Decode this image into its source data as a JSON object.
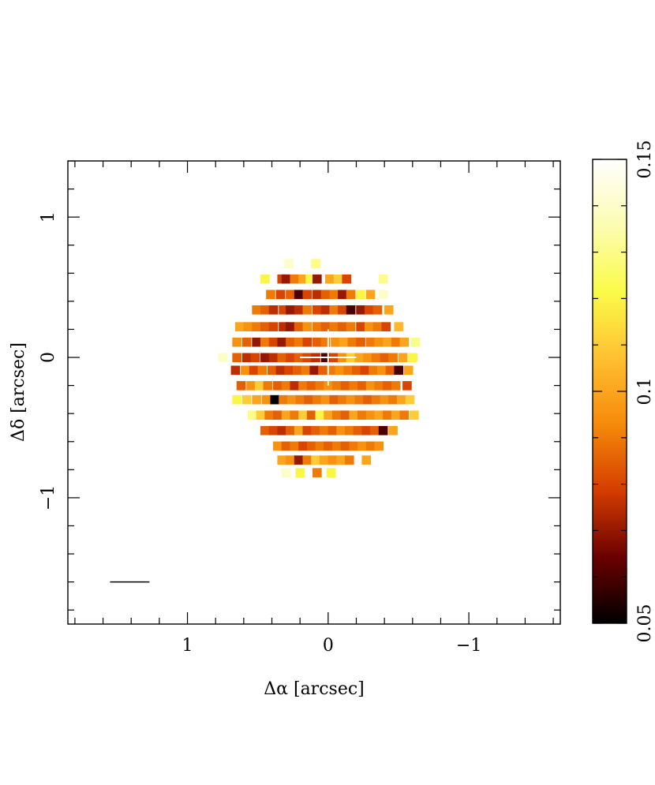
{
  "chart_data": {
    "type": "heatmap",
    "title": "",
    "xlabel": "Δα [arcsec]",
    "ylabel": "Δδ [arcsec]",
    "xlim": [
      1.85,
      -1.65
    ],
    "ylim": [
      -1.9,
      1.4
    ],
    "x_ticks": [
      {
        "value": 1,
        "label": "1"
      },
      {
        "value": 0,
        "label": "0"
      },
      {
        "value": -1,
        "label": "−1"
      }
    ],
    "y_ticks": [
      {
        "value": 1,
        "label": "1"
      },
      {
        "value": 0,
        "label": "0"
      },
      {
        "value": -1,
        "label": "−1"
      }
    ],
    "x_minor_step": 0.2,
    "y_minor_step": 0.2,
    "pixel_size_arcsec": [
      0.0625,
      0.0625
    ],
    "center_marker": {
      "type": "cross",
      "color": "#ffffff",
      "x": 0,
      "y": 0,
      "half_length_x": 0.2,
      "half_length_y": 0.2
    },
    "scale_bar": {
      "x_start": 1.55,
      "x_end": 1.27,
      "y": -1.6,
      "color": "#000000"
    },
    "colorbar": {
      "range": [
        0.05,
        0.15
      ],
      "ticks": [
        {
          "value": 0.05,
          "label": "0.05"
        },
        {
          "value": 0.1,
          "label": "0.1"
        },
        {
          "value": 0.15,
          "label": "0.15"
        }
      ],
      "minor_step": 0.01,
      "colormap": "afmhot",
      "colors": [
        "#000000",
        "#6b0000",
        "#d43d00",
        "#f58a0a",
        "#ffc030",
        "#fbfb49",
        "#fcfcb2",
        "#ffffff"
      ]
    },
    "grid": false,
    "legend": "none",
    "heatmap_rows": [
      {
        "y": 0.67,
        "cells": [
          [
            0.28,
            0.14
          ],
          [
            0.09,
            0.13
          ]
        ]
      },
      {
        "y": 0.56,
        "cells": [
          [
            0.45,
            0.12
          ],
          [
            0.33,
            0.08
          ],
          [
            0.3,
            0.07
          ],
          [
            0.24,
            0.09
          ],
          [
            0.18,
            0.1
          ],
          [
            0.13,
            0.12
          ],
          [
            0.08,
            0.07
          ],
          [
            -0.01,
            0.1
          ],
          [
            -0.07,
            0.11
          ],
          [
            -0.13,
            0.08
          ],
          [
            -0.39,
            0.13
          ]
        ]
      },
      {
        "y": 0.45,
        "cells": [
          [
            0.41,
            0.09
          ],
          [
            0.34,
            0.08
          ],
          [
            0.27,
            0.085
          ],
          [
            0.21,
            0.06
          ],
          [
            0.15,
            0.08
          ],
          [
            0.08,
            0.075
          ],
          [
            0.02,
            0.085
          ],
          [
            -0.04,
            0.09
          ],
          [
            -0.1,
            0.07
          ],
          [
            -0.16,
            0.09
          ],
          [
            -0.23,
            0.12
          ],
          [
            -0.3,
            0.1
          ],
          [
            -0.39,
            0.14
          ]
        ]
      },
      {
        "y": 0.34,
        "cells": [
          [
            0.51,
            0.09
          ],
          [
            0.45,
            0.085
          ],
          [
            0.39,
            0.075
          ],
          [
            0.32,
            0.08
          ],
          [
            0.27,
            0.07
          ],
          [
            0.21,
            0.075
          ],
          [
            0.15,
            0.09
          ],
          [
            0.08,
            0.08
          ],
          [
            0.02,
            0.075
          ],
          [
            -0.04,
            0.09
          ],
          [
            -0.1,
            0.08
          ],
          [
            -0.16,
            0.06
          ],
          [
            -0.23,
            0.07
          ],
          [
            -0.29,
            0.08
          ],
          [
            -0.35,
            0.085
          ],
          [
            -0.43,
            0.1
          ]
        ]
      },
      {
        "y": 0.22,
        "cells": [
          [
            0.63,
            0.1
          ],
          [
            0.57,
            0.095
          ],
          [
            0.51,
            0.09
          ],
          [
            0.45,
            0.085
          ],
          [
            0.39,
            0.08
          ],
          [
            0.32,
            0.075
          ],
          [
            0.27,
            0.07
          ],
          [
            0.21,
            0.085
          ],
          [
            0.15,
            0.095
          ],
          [
            0.08,
            0.09
          ],
          [
            0.02,
            0.085
          ],
          [
            -0.04,
            0.09
          ],
          [
            -0.1,
            0.085
          ],
          [
            -0.16,
            0.09
          ],
          [
            -0.23,
            0.08
          ],
          [
            -0.29,
            0.095
          ],
          [
            -0.35,
            0.09
          ],
          [
            -0.41,
            0.08
          ],
          [
            -0.5,
            0.105
          ]
        ]
      },
      {
        "y": 0.11,
        "cells": [
          [
            0.65,
            0.095
          ],
          [
            0.58,
            0.085
          ],
          [
            0.51,
            0.07
          ],
          [
            0.45,
            0.09
          ],
          [
            0.39,
            0.08
          ],
          [
            0.33,
            0.07
          ],
          [
            0.27,
            0.085
          ],
          [
            0.21,
            0.09
          ],
          [
            0.15,
            0.08
          ],
          [
            0.08,
            0.085
          ],
          [
            0.02,
            0.09
          ],
          [
            -0.05,
            0.095
          ],
          [
            -0.11,
            0.1
          ],
          [
            -0.17,
            0.09
          ],
          [
            -0.23,
            0.085
          ],
          [
            -0.3,
            0.09
          ],
          [
            -0.36,
            0.095
          ],
          [
            -0.42,
            0.1
          ],
          [
            -0.48,
            0.09
          ],
          [
            -0.54,
            0.1
          ],
          [
            -0.62,
            0.13
          ]
        ]
      },
      {
        "y": 0.0,
        "cells": [
          [
            0.75,
            0.14
          ],
          [
            0.65,
            0.085
          ],
          [
            0.58,
            0.075
          ],
          [
            0.52,
            0.08
          ],
          [
            0.45,
            0.07
          ],
          [
            0.39,
            0.075
          ],
          [
            0.33,
            0.085
          ],
          [
            0.27,
            0.08
          ],
          [
            0.21,
            0.085
          ],
          [
            0.15,
            0.08
          ],
          [
            0.09,
            0.075
          ],
          [
            0.02,
            0.06
          ],
          [
            -0.04,
            0.08
          ],
          [
            -0.1,
            0.095
          ],
          [
            -0.16,
            0.11
          ],
          [
            -0.22,
            0.1
          ],
          [
            -0.28,
            0.095
          ],
          [
            -0.34,
            0.09
          ],
          [
            -0.4,
            0.085
          ],
          [
            -0.46,
            0.09
          ],
          [
            -0.53,
            0.1
          ],
          [
            -0.6,
            0.12
          ]
        ]
      },
      {
        "y": -0.09,
        "cells": [
          [
            0.66,
            0.075
          ],
          [
            0.59,
            0.095
          ],
          [
            0.53,
            0.08
          ],
          [
            0.47,
            0.09
          ],
          [
            0.4,
            0.085
          ],
          [
            0.34,
            0.075
          ],
          [
            0.28,
            0.08
          ],
          [
            0.22,
            0.085
          ],
          [
            0.16,
            0.09
          ],
          [
            0.1,
            0.07
          ],
          [
            0.04,
            0.085
          ],
          [
            -0.02,
            0.09
          ],
          [
            -0.08,
            0.095
          ],
          [
            -0.14,
            0.09
          ],
          [
            -0.2,
            0.085
          ],
          [
            -0.26,
            0.08
          ],
          [
            -0.32,
            0.09
          ],
          [
            -0.38,
            0.095
          ],
          [
            -0.44,
            0.085
          ],
          [
            -0.5,
            0.06
          ],
          [
            -0.57,
            0.1
          ]
        ]
      },
      {
        "y": -0.2,
        "cells": [
          [
            0.62,
            0.085
          ],
          [
            0.55,
            0.095
          ],
          [
            0.49,
            0.11
          ],
          [
            0.43,
            0.09
          ],
          [
            0.36,
            0.085
          ],
          [
            0.3,
            0.09
          ],
          [
            0.24,
            0.075
          ],
          [
            0.18,
            0.09
          ],
          [
            0.12,
            0.085
          ],
          [
            0.06,
            0.09
          ],
          [
            0.0,
            0.095
          ],
          [
            -0.06,
            0.09
          ],
          [
            -0.12,
            0.085
          ],
          [
            -0.18,
            0.09
          ],
          [
            -0.24,
            0.085
          ],
          [
            -0.3,
            0.095
          ],
          [
            -0.36,
            0.09
          ],
          [
            -0.42,
            0.085
          ],
          [
            -0.48,
            0.09
          ],
          [
            -0.56,
            0.08
          ]
        ]
      },
      {
        "y": -0.3,
        "cells": [
          [
            0.65,
            0.12
          ],
          [
            0.58,
            0.11
          ],
          [
            0.51,
            0.1
          ],
          [
            0.44,
            0.095
          ],
          [
            0.38,
            0.05
          ],
          [
            0.32,
            0.09
          ],
          [
            0.26,
            0.095
          ],
          [
            0.2,
            0.09
          ],
          [
            0.14,
            0.085
          ],
          [
            0.08,
            0.09
          ],
          [
            0.02,
            0.095
          ],
          [
            -0.04,
            0.085
          ],
          [
            -0.1,
            0.09
          ],
          [
            -0.16,
            0.095
          ],
          [
            -0.22,
            0.09
          ],
          [
            -0.28,
            0.085
          ],
          [
            -0.34,
            0.09
          ],
          [
            -0.4,
            0.095
          ],
          [
            -0.46,
            0.09
          ],
          [
            -0.52,
            0.1
          ],
          [
            -0.58,
            0.11
          ]
        ]
      },
      {
        "y": -0.41,
        "cells": [
          [
            0.54,
            0.13
          ],
          [
            0.48,
            0.11
          ],
          [
            0.42,
            0.09
          ],
          [
            0.36,
            0.085
          ],
          [
            0.3,
            0.1
          ],
          [
            0.24,
            0.09
          ],
          [
            0.18,
            0.11
          ],
          [
            0.12,
            0.085
          ],
          [
            0.06,
            0.12
          ],
          [
            0.0,
            0.1
          ],
          [
            -0.06,
            0.09
          ],
          [
            -0.12,
            0.085
          ],
          [
            -0.18,
            0.1
          ],
          [
            -0.24,
            0.09
          ],
          [
            -0.3,
            0.095
          ],
          [
            -0.36,
            0.1
          ],
          [
            -0.42,
            0.09
          ],
          [
            -0.48,
            0.1
          ],
          [
            -0.54,
            0.09
          ],
          [
            -0.61,
            0.11
          ]
        ]
      },
      {
        "y": -0.52,
        "cells": [
          [
            0.45,
            0.085
          ],
          [
            0.39,
            0.08
          ],
          [
            0.33,
            0.075
          ],
          [
            0.27,
            0.085
          ],
          [
            0.21,
            0.1
          ],
          [
            0.15,
            0.08
          ],
          [
            0.09,
            0.085
          ],
          [
            0.03,
            0.09
          ],
          [
            -0.03,
            0.085
          ],
          [
            -0.09,
            0.095
          ],
          [
            -0.15,
            0.09
          ],
          [
            -0.21,
            0.085
          ],
          [
            -0.27,
            0.08
          ],
          [
            -0.33,
            0.085
          ],
          [
            -0.39,
            0.06
          ],
          [
            -0.46,
            0.1
          ]
        ]
      },
      {
        "y": -0.63,
        "cells": [
          [
            0.36,
            0.095
          ],
          [
            0.3,
            0.085
          ],
          [
            0.24,
            0.09
          ],
          [
            0.18,
            0.08
          ],
          [
            0.12,
            0.085
          ],
          [
            0.06,
            0.09
          ],
          [
            0.0,
            0.085
          ],
          [
            -0.06,
            0.09
          ],
          [
            -0.12,
            0.085
          ],
          [
            -0.18,
            0.09
          ],
          [
            -0.24,
            0.095
          ],
          [
            -0.3,
            0.09
          ],
          [
            -0.36,
            0.095
          ]
        ]
      },
      {
        "y": -0.73,
        "cells": [
          [
            0.33,
            0.1
          ],
          [
            0.27,
            0.095
          ],
          [
            0.21,
            0.07
          ],
          [
            0.15,
            0.09
          ],
          [
            0.09,
            0.11
          ],
          [
            0.03,
            0.1
          ],
          [
            -0.03,
            0.095
          ],
          [
            -0.09,
            0.1
          ],
          [
            -0.15,
            0.09
          ],
          [
            -0.27,
            0.1
          ]
        ]
      },
      {
        "y": -0.82,
        "cells": [
          [
            0.3,
            0.14
          ],
          [
            0.2,
            0.12
          ],
          [
            0.08,
            0.09
          ],
          [
            -0.02,
            0.12
          ]
        ]
      }
    ]
  }
}
